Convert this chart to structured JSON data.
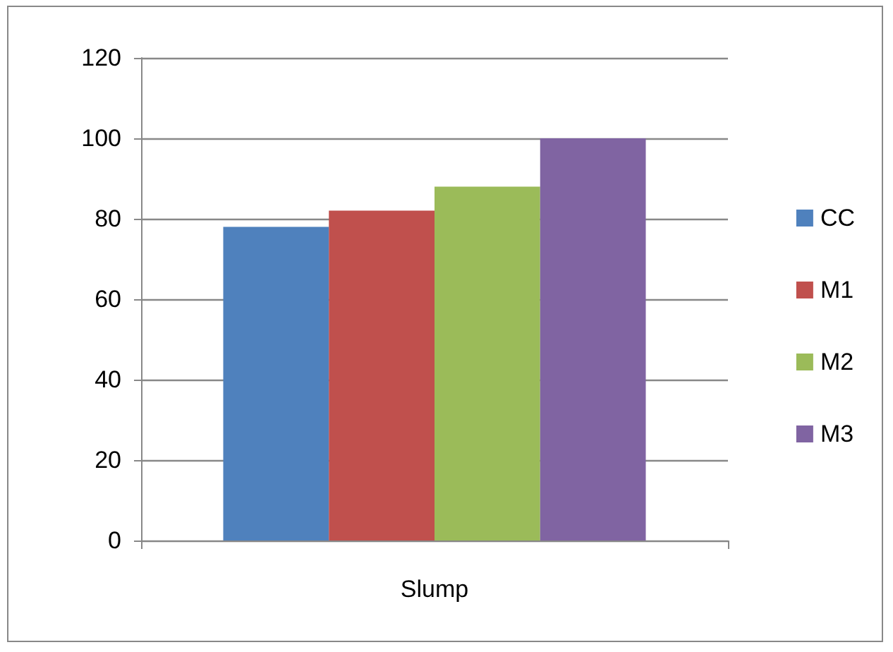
{
  "chart_data": {
    "type": "bar",
    "categories": [
      "Slump"
    ],
    "series": [
      {
        "name": "CC",
        "color": "#4f81bd",
        "values": [
          78
        ]
      },
      {
        "name": "M1",
        "color": "#c0504d",
        "values": [
          82
        ]
      },
      {
        "name": "M2",
        "color": "#9bbb59",
        "values": [
          88
        ]
      },
      {
        "name": "M3",
        "color": "#8064a2",
        "values": [
          100
        ]
      }
    ],
    "ylim": [
      0,
      120
    ],
    "yticks": [
      0,
      20,
      40,
      60,
      80,
      100,
      120
    ],
    "grid": "y",
    "legend": "right"
  }
}
